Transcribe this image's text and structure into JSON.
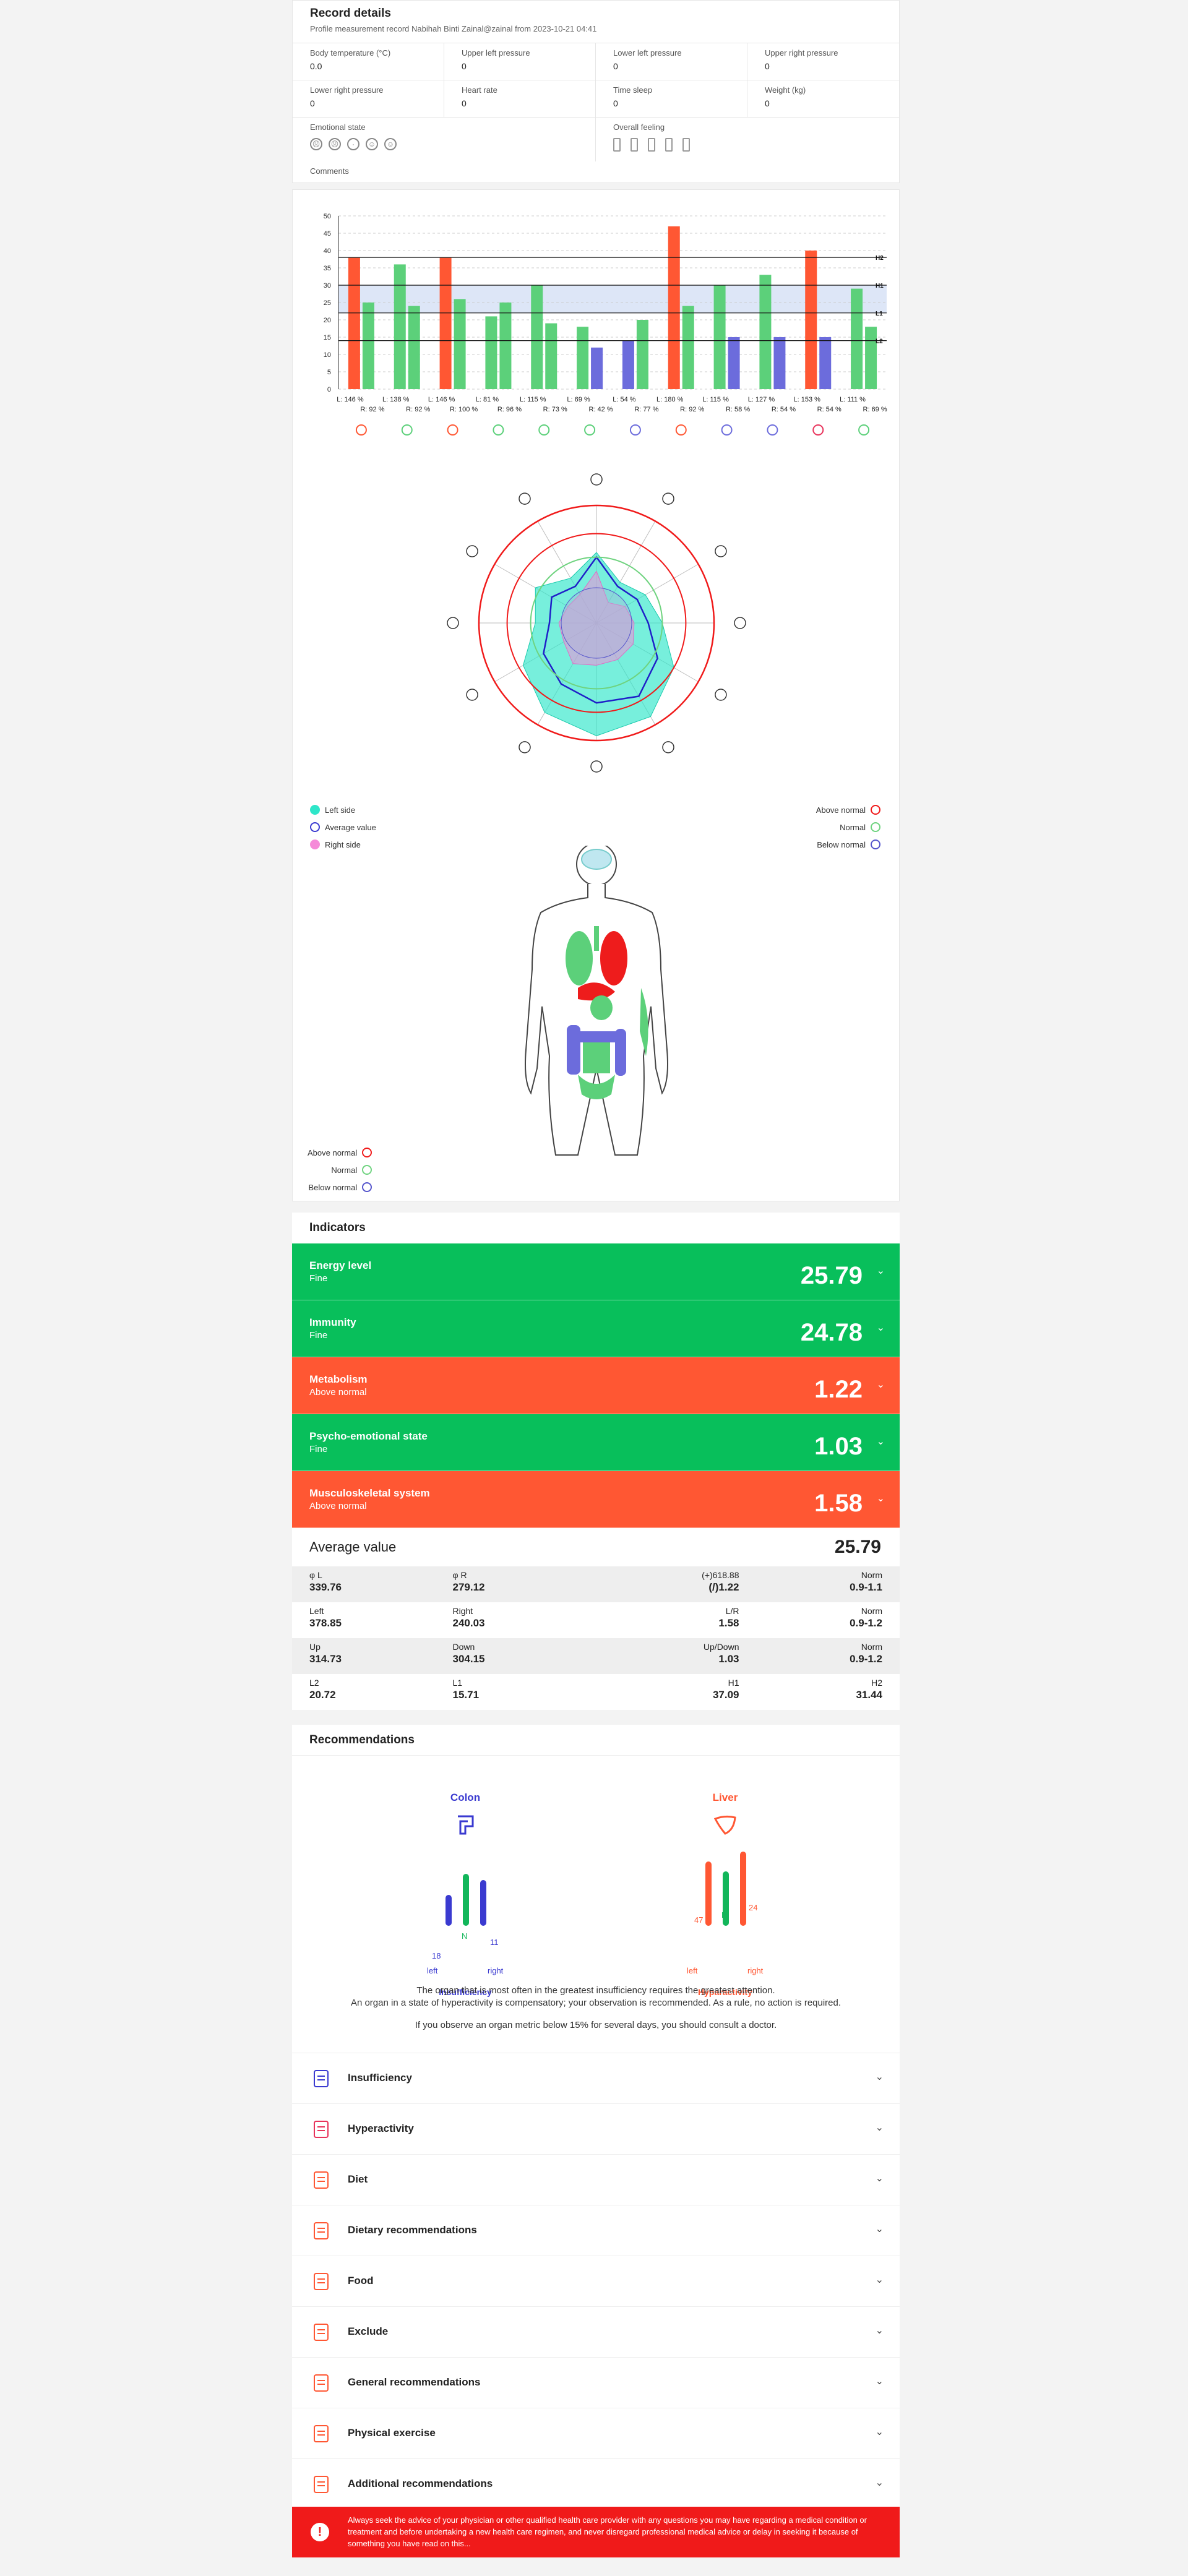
{
  "record": {
    "title": "Record details",
    "subtitle": "Profile measurement record Nabihah Binti Zainal@zainal from 2023-10-21 04:41",
    "row1": [
      {
        "label": "Body temperature (°C)",
        "value": "0.0"
      },
      {
        "label": "Upper left pressure",
        "value": "0"
      },
      {
        "label": "Lower left pressure",
        "value": "0"
      },
      {
        "label": "Upper right pressure",
        "value": "0"
      }
    ],
    "row2": [
      {
        "label": "Lower right pressure",
        "value": "0"
      },
      {
        "label": "Heart rate",
        "value": "0"
      },
      {
        "label": "Time sleep",
        "value": "0"
      },
      {
        "label": "Weight (kg)",
        "value": "0"
      }
    ],
    "emotional_label": "Emotional state",
    "overall_label": "Overall feeling",
    "comments_label": "Comments"
  },
  "chart_data": {
    "type": "bar",
    "ylim": [
      0,
      50
    ],
    "yticks": [
      0,
      5,
      10,
      15,
      20,
      25,
      30,
      35,
      40,
      45,
      50
    ],
    "reference_lines": [
      {
        "label": "H2",
        "value": 38
      },
      {
        "label": "H1",
        "value": 30
      },
      {
        "label": "L1",
        "value": 22
      },
      {
        "label": "L2",
        "value": 14
      }
    ],
    "categories": [
      "L: 146 % R: 92 %",
      "L: 138 % R: 92 %",
      "L: 146 % R: 100 %",
      "L: 81 % R: 96 %",
      "L: 115 % R: 73 %",
      "L: 69 % R: 42 %",
      "L: 54 % R: 77 %",
      "L: 180 % R: 92 %",
      "L: 115 % R: 58 %",
      "L: 127 % R: 54 %",
      "L: 153 % R: 54 %",
      "L: 111 % R: 69 %"
    ],
    "category_top": [
      "L: 146 %",
      "L: 138 %",
      "L: 146 %",
      "L: 81 %",
      "L: 115 %",
      "L: 69 %",
      "L: 54 %",
      "L: 180 %",
      "L: 115 %",
      "L: 127 %",
      "L: 153 %",
      "L: 111 %"
    ],
    "category_bottom": [
      "R: 92 %",
      "R: 92 %",
      "R: 100 %",
      "R: 96 %",
      "R: 73 %",
      "R: 42 %",
      "R: 77 %",
      "R: 92 %",
      "R: 58 %",
      "R: 54 %",
      "R: 54 %",
      "R: 69 %"
    ],
    "series": [
      {
        "values": [
          38,
          36,
          38,
          21,
          30,
          18,
          14,
          47,
          30,
          33,
          40,
          29
        ],
        "colors": [
          "#ff5733",
          "#5cd07a",
          "#ff5733",
          "#5cd07a",
          "#5cd07a",
          "#5cd07a",
          "#6c6cdc",
          "#ff5733",
          "#5cd07a",
          "#5cd07a",
          "#ff5733",
          "#5cd07a"
        ]
      },
      {
        "values": [
          25,
          24,
          26,
          25,
          19,
          12,
          20,
          24,
          15,
          15,
          15,
          18
        ],
        "colors": [
          "#5cd07a",
          "#5cd07a",
          "#5cd07a",
          "#5cd07a",
          "#5cd07a",
          "#6c6cdc",
          "#5cd07a",
          "#5cd07a",
          "#6c6cdc",
          "#6c6cdc",
          "#6c6cdc",
          "#5cd07a"
        ]
      }
    ],
    "radar": {
      "left_side": [
        30,
        20,
        24,
        28,
        38,
        46,
        48,
        44,
        36,
        26,
        30,
        22
      ],
      "right_side": [
        22,
        10,
        14,
        16,
        18,
        18,
        18,
        20,
        16,
        16,
        14,
        14
      ],
      "average": [
        28,
        18,
        20,
        22,
        30,
        36,
        34,
        30,
        26,
        20,
        22,
        18
      ]
    }
  },
  "legend_radar_left": [
    "Left side",
    "Average value",
    "Right side"
  ],
  "legend_radar_right": [
    "Above normal",
    "Normal",
    "Below normal"
  ],
  "legend_body": [
    "Above normal",
    "Normal",
    "Below normal"
  ],
  "colors": {
    "green": "#08bf5b",
    "orange": "#ff5733",
    "red": "#f01a1a",
    "blue": "#5555cc"
  },
  "indicators": {
    "title": "Indicators",
    "items": [
      {
        "name": "Energy level",
        "status": "Fine",
        "value": "25.79",
        "color": "green"
      },
      {
        "name": "Immunity",
        "status": "Fine",
        "value": "24.78",
        "color": "green"
      },
      {
        "name": "Metabolism",
        "status": "Above normal",
        "value": "1.22",
        "color": "orange"
      },
      {
        "name": "Psycho-emotional state",
        "status": "Fine",
        "value": "1.03",
        "color": "green"
      },
      {
        "name": "Musculoskeletal system",
        "status": "Above normal",
        "value": "1.58",
        "color": "orange"
      }
    ],
    "average_label": "Average value",
    "average_value": "25.79",
    "metrics": [
      [
        {
          "l": "φ L",
          "v": "339.76"
        },
        {
          "l": "φ R",
          "v": "279.12"
        },
        {
          "l": "(+)618.88",
          "v": "(/)1.22"
        },
        {
          "l": "Norm",
          "v": "0.9-1.1"
        }
      ],
      [
        {
          "l": "Left",
          "v": "378.85"
        },
        {
          "l": "Right",
          "v": "240.03"
        },
        {
          "l": "L/R",
          "v": "1.58"
        },
        {
          "l": "Norm",
          "v": "0.9-1.2"
        }
      ],
      [
        {
          "l": "Up",
          "v": "314.73"
        },
        {
          "l": "Down",
          "v": "304.15"
        },
        {
          "l": "Up/Down",
          "v": "1.03"
        },
        {
          "l": "Norm",
          "v": "0.9-1.2"
        }
      ],
      [
        {
          "l": "L2",
          "v": "20.72"
        },
        {
          "l": "L1",
          "v": "15.71"
        },
        {
          "l": "H1",
          "v": "37.09"
        },
        {
          "l": "H2",
          "v": "31.44"
        }
      ]
    ]
  },
  "recommendations": {
    "title": "Recommendations",
    "colon": {
      "name": "Colon",
      "left": "18",
      "n": "N",
      "right": "11",
      "left_label": "left",
      "right_label": "right",
      "caption": "Insufficiency"
    },
    "liver": {
      "name": "Liver",
      "left": "47",
      "n": "N",
      "right": "24",
      "left_label": "left",
      "right_label": "right",
      "caption": "Hyparactivity"
    },
    "note1": "The organ that is most often in the greatest insufficiency requires the greatest attention.",
    "note2": "An organ in a state of hyperactivity is compensatory; your observation is recommended. As a rule, no action is required.",
    "note3": "If you observe an organ metric below 15% for several days, you should consult a doctor.",
    "sections": [
      "Insufficiency",
      "Hyperactivity",
      "Diet",
      "Dietary recommendations",
      "Food",
      "Exclude",
      "General recommendations",
      "Physical exercise",
      "Additional recommendations"
    ]
  },
  "warning": "Always seek the advice of your physician or other qualified health care provider with any questions you may have regarding a medical condition or treatment and before undertaking a new health care regimen, and never disregard professional medical advice or delay in seeking it because of something you have read on this..."
}
